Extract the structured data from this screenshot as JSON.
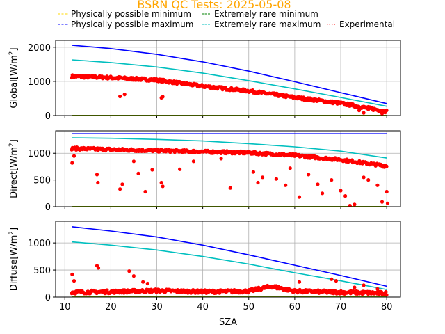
{
  "chart_data": {
    "type": "scatter",
    "title": "BSRN QC Tests: 2025-05-08",
    "xlabel": "SZA",
    "xlim": [
      8,
      83
    ],
    "xticks": [
      10,
      20,
      30,
      40,
      50,
      60,
      70,
      80
    ],
    "grid": true,
    "legend": {
      "placement": "top",
      "entries": [
        {
          "label": "Physically possible minimum",
          "color": "#ffd700",
          "style": "dashed"
        },
        {
          "label": "Physically possible maximum",
          "color": "#0000ff",
          "style": "dashed"
        },
        {
          "label": "Extremely rare minimum",
          "color": "#008000",
          "style": "dashed"
        },
        {
          "label": "Extremely rare maximum",
          "color": "#00bfbf",
          "style": "dashed"
        },
        {
          "label": "Experimental",
          "color": "#ff0000",
          "style": "dotted"
        }
      ]
    },
    "panels": [
      {
        "ylabel": "Global[W/m",
        "ylabel_sup": "2",
        "ylabel_end": "]",
        "ylim": [
          0,
          2200
        ],
        "yticks": [
          0,
          1000,
          2000
        ],
        "series": [
          {
            "role": "ppl_max",
            "color": "#0000ff",
            "x": [
              11.5,
              20,
              30,
              40,
              50,
              60,
              70,
              80
            ],
            "y": [
              2060,
              1960,
              1790,
              1570,
              1300,
              990,
              670,
              350
            ]
          },
          {
            "role": "erl_max",
            "color": "#00bfbf",
            "x": [
              11.5,
              20,
              30,
              40,
              50,
              60,
              70,
              80
            ],
            "y": [
              1630,
              1550,
              1420,
              1240,
              1020,
              780,
              530,
              270
            ]
          },
          {
            "role": "erl_min",
            "color": "#008000",
            "x": [
              11.5,
              80
            ],
            "y": [
              4,
              4
            ]
          },
          {
            "role": "ppl_min",
            "color": "#ffd700",
            "x": [
              11.5,
              80
            ],
            "y": [
              0,
              0
            ]
          },
          {
            "role": "obs",
            "color": "#ff0000",
            "trend_x": [
              11.5,
              20,
              30,
              40,
              50,
              60,
              70,
              80
            ],
            "trend_y": [
              1150,
              1110,
              1040,
              860,
              720,
              530,
              360,
              120
            ],
            "spread": 40,
            "dips": [
              [
                22,
                560
              ],
              [
                23,
                620
              ],
              [
                31,
                520
              ],
              [
                31.3,
                550
              ],
              [
                65,
                430
              ],
              [
                68,
                370
              ],
              [
                74,
                150
              ],
              [
                75,
                80
              ],
              [
                76,
                180
              ],
              [
                79,
                60
              ]
            ]
          }
        ]
      },
      {
        "ylabel": "Direct[W/m",
        "ylabel_sup": "2",
        "ylabel_end": "]",
        "ylim": [
          0,
          1420
        ],
        "yticks": [
          0,
          500,
          1000
        ],
        "series": [
          {
            "role": "ppl_max",
            "color": "#0000ff",
            "x": [
              11.5,
              80
            ],
            "y": [
              1365,
              1365
            ]
          },
          {
            "role": "erl_max",
            "color": "#00bfbf",
            "x": [
              11.5,
              20,
              30,
              40,
              50,
              60,
              70,
              80
            ],
            "y": [
              1290,
              1280,
              1260,
              1230,
              1180,
              1120,
              1040,
              910
            ]
          },
          {
            "role": "erl_min",
            "color": "#008000",
            "x": [
              11.5,
              80
            ],
            "y": [
              3,
              3
            ]
          },
          {
            "role": "ppl_min",
            "color": "#ffd700",
            "x": [
              11.5,
              80
            ],
            "y": [
              0,
              0
            ]
          },
          {
            "role": "obs",
            "color": "#ff0000",
            "trend_x": [
              11.5,
              20,
              30,
              40,
              50,
              60,
              70,
              80
            ],
            "trend_y": [
              1090,
              1070,
              1050,
              1030,
              1010,
              960,
              880,
              760
            ],
            "spread": 25,
            "dips": [
              [
                11.6,
                820
              ],
              [
                12,
                950
              ],
              [
                17,
                600
              ],
              [
                17.2,
                450
              ],
              [
                22,
                330
              ],
              [
                22.5,
                420
              ],
              [
                25,
                850
              ],
              [
                26,
                620
              ],
              [
                27.5,
                280
              ],
              [
                29,
                690
              ],
              [
                31,
                450
              ],
              [
                31.3,
                380
              ],
              [
                35,
                700
              ],
              [
                38,
                850
              ],
              [
                44,
                900
              ],
              [
                46,
                350
              ],
              [
                51,
                650
              ],
              [
                52,
                450
              ],
              [
                53,
                550
              ],
              [
                56,
                520
              ],
              [
                58,
                400
              ],
              [
                59,
                720
              ],
              [
                61,
                180
              ],
              [
                63,
                600
              ],
              [
                65,
                420
              ],
              [
                66,
                250
              ],
              [
                68,
                500
              ],
              [
                70,
                300
              ],
              [
                71,
                200
              ],
              [
                72,
                20
              ],
              [
                73,
                40
              ],
              [
                75,
                550
              ],
              [
                76,
                500
              ],
              [
                78,
                400
              ],
              [
                79,
                90
              ],
              [
                80,
                280
              ],
              [
                80.2,
                60
              ]
            ]
          }
        ]
      },
      {
        "ylabel": "Diffuse[W/m",
        "ylabel_sup": "2",
        "ylabel_end": "]",
        "ylim": [
          0,
          1400
        ],
        "yticks": [
          0,
          500,
          1000
        ],
        "series": [
          {
            "role": "ppl_max",
            "color": "#0000ff",
            "x": [
              11.5,
              20,
              30,
              40,
              50,
              60,
              70,
              80
            ],
            "y": [
              1300,
              1220,
              1110,
              960,
              780,
              590,
              400,
              200
            ]
          },
          {
            "role": "erl_max",
            "color": "#00bfbf",
            "x": [
              11.5,
              20,
              30,
              40,
              50,
              60,
              70,
              80
            ],
            "y": [
              1020,
              960,
              870,
              750,
              610,
              450,
              300,
              140
            ]
          },
          {
            "role": "erl_min",
            "color": "#008000",
            "x": [
              11.5,
              80
            ],
            "y": [
              3,
              3
            ]
          },
          {
            "role": "ppl_min",
            "color": "#ffd700",
            "x": [
              11.5,
              80
            ],
            "y": [
              0,
              0
            ]
          },
          {
            "role": "obs",
            "color": "#ff0000",
            "trend_x": [
              11.5,
              20,
              30,
              40,
              50,
              55,
              60,
              70,
              80
            ],
            "trend_y": [
              90,
              100,
              120,
              100,
              110,
              200,
              110,
              90,
              70
            ],
            "spread": 30,
            "dips": [
              [
                11.6,
                420
              ],
              [
                12,
                300
              ],
              [
                17,
                580
              ],
              [
                17.3,
                540
              ],
              [
                24,
                480
              ],
              [
                25,
                390
              ],
              [
                27,
                280
              ],
              [
                28,
                250
              ],
              [
                61,
                280
              ],
              [
                68,
                330
              ],
              [
                69,
                300
              ],
              [
                73,
                180
              ],
              [
                75,
                220
              ],
              [
                78,
                150
              ]
            ]
          }
        ]
      }
    ]
  }
}
